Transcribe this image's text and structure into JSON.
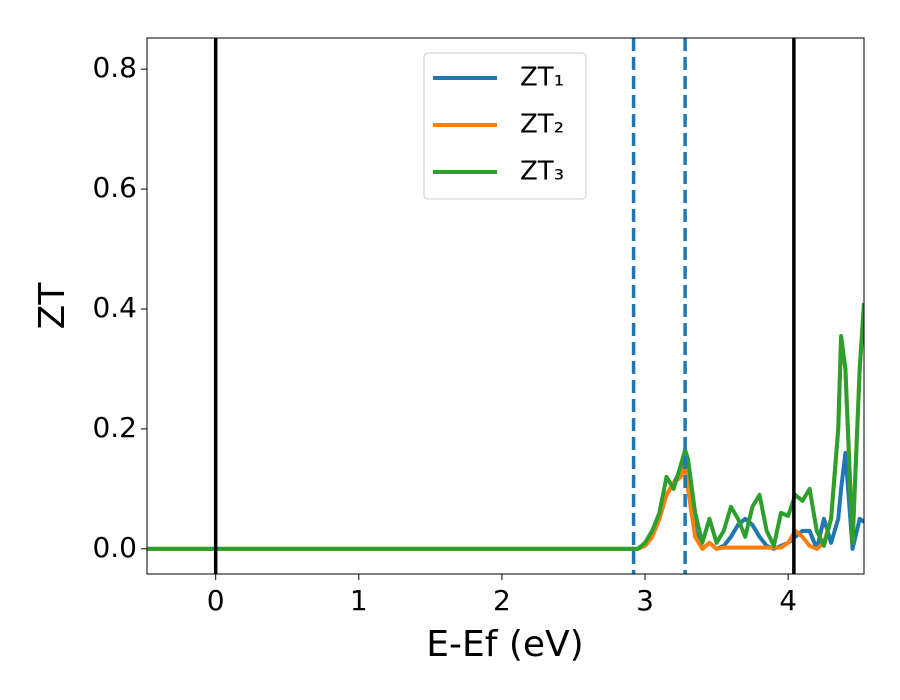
{
  "chart_data": {
    "type": "line",
    "x_label": "E-Ef (eV)",
    "y_label": "ZT",
    "x": [
      -0.48,
      2.9,
      2.95,
      3.0,
      3.05,
      3.1,
      3.15,
      3.2,
      3.25,
      3.28,
      3.3,
      3.35,
      3.4,
      3.45,
      3.5,
      3.55,
      3.6,
      3.65,
      3.7,
      3.75,
      3.8,
      3.85,
      3.9,
      3.95,
      4.0,
      4.05,
      4.1,
      4.15,
      4.2,
      4.25,
      4.3,
      4.35,
      4.37,
      4.4,
      4.45,
      4.5,
      4.53
    ],
    "series": [
      {
        "name": "ZT₁",
        "color": "#1f77b4",
        "values": [
          0,
          0,
          0,
          0.005,
          0.02,
          0.05,
          0.09,
          0.11,
          0.13,
          0.16,
          0.12,
          0.03,
          0.0,
          0.01,
          0.0,
          0.005,
          0.02,
          0.04,
          0.05,
          0.04,
          0.02,
          0.005,
          0.0,
          0.005,
          0.01,
          0.02,
          0.03,
          0.03,
          0.0,
          0.05,
          0.01,
          0.05,
          0.1,
          0.16,
          0.0,
          0.05,
          0.045
        ]
      },
      {
        "name": "ZT₂",
        "color": "#ff7f0e",
        "values": [
          0,
          0,
          0,
          0.005,
          0.02,
          0.05,
          0.09,
          0.11,
          0.12,
          0.14,
          0.1,
          0.02,
          0.0,
          0.01,
          0.0,
          0.002,
          0.002,
          0.002,
          0.002,
          0.002,
          0.002,
          0.002,
          0.002,
          0.002,
          0.01,
          0.03,
          0.02,
          0.005,
          0.0,
          0.01,
          0.05,
          0.2,
          0.35,
          0.3,
          0.01,
          0.3,
          0.41
        ]
      },
      {
        "name": "ZT₃",
        "color": "#2ca02c",
        "values": [
          0,
          0,
          0,
          0.01,
          0.03,
          0.06,
          0.12,
          0.1,
          0.14,
          0.165,
          0.15,
          0.06,
          0.01,
          0.05,
          0.01,
          0.03,
          0.07,
          0.05,
          0.02,
          0.07,
          0.09,
          0.03,
          0.005,
          0.06,
          0.055,
          0.09,
          0.08,
          0.1,
          0.03,
          0.005,
          0.05,
          0.2,
          0.355,
          0.3,
          0.01,
          0.3,
          0.41
        ]
      }
    ],
    "vlines": [
      {
        "x": 0,
        "color": "#000000",
        "style": "solid"
      },
      {
        "x": 4.04,
        "color": "#000000",
        "style": "solid"
      },
      {
        "x": 2.92,
        "color": "#1f77b4",
        "style": "dashed"
      },
      {
        "x": 3.28,
        "color": "#1f77b4",
        "style": "dashed"
      }
    ],
    "xlim": [
      -0.48,
      4.53
    ],
    "ylim": [
      -0.042,
      0.852
    ],
    "xticks": [
      0,
      1,
      2,
      3,
      4
    ],
    "yticks": [
      {
        "value": 0,
        "label": "0.0"
      },
      0.2,
      0.4,
      0.6,
      0.8
    ],
    "grid": false,
    "legend": "upper center"
  }
}
